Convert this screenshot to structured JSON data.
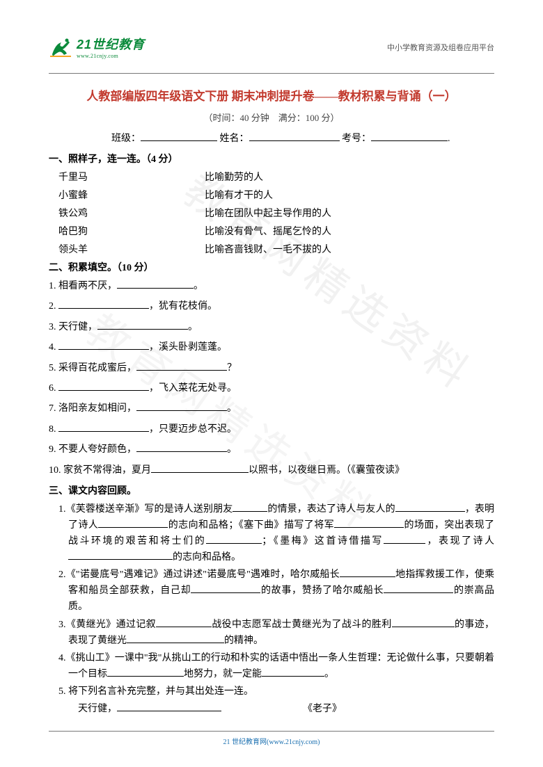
{
  "header": {
    "logo_title": "21世纪教育",
    "logo_sub": "www.21cnjy.com",
    "right_text": "中小学教育资源及组卷应用平台"
  },
  "title": "人教部编版四年级语文下册 期末冲刺提升卷——教材积累与背诵（一）",
  "meta": "（时间：40 分钟　满分：100 分）",
  "info": {
    "class_label": "班级：",
    "name_label": "姓名：",
    "id_label": "考号："
  },
  "section1": {
    "head": "一、照样子，连一连。（4 分）",
    "rows": [
      {
        "l": "千里马",
        "r": "比喻勤劳的人"
      },
      {
        "l": "小蜜蜂",
        "r": "比喻有才干的人"
      },
      {
        "l": "铁公鸡",
        "r": "比喻在团队中起主导作用的人"
      },
      {
        "l": "哈巴狗",
        "r": "比喻没有骨气、摇尾乞怜的人"
      },
      {
        "l": "领头羊",
        "r": "比喻吝啬钱财、一毛不拔的人"
      }
    ]
  },
  "section2": {
    "head": "二、积累填空。（10 分）",
    "items": [
      {
        "n": "1.",
        "pre": "相看两不厌，",
        "post": "。",
        "w": 110
      },
      {
        "n": "2.",
        "pre": "",
        "post": "，犹有花枝俏。",
        "w": 130,
        "lead": true
      },
      {
        "n": "3.",
        "pre": "天行健，",
        "post": "。",
        "w": 130
      },
      {
        "n": "4.",
        "pre": "",
        "post": "，溪头卧剥莲蓬。",
        "w": 130,
        "lead": true
      },
      {
        "n": "5.",
        "pre": "采得百花成蜜后，",
        "post": "？",
        "w": 130
      },
      {
        "n": "6.",
        "pre": "",
        "post": "，飞入菜花无处寻。",
        "w": 130,
        "lead": true
      },
      {
        "n": "7.",
        "pre": "洛阳亲友如相问，",
        "post": "。",
        "w": 130
      },
      {
        "n": "8.",
        "pre": "",
        "post": "，只要迈步总不迟。",
        "w": 130,
        "lead": true
      },
      {
        "n": "9.",
        "pre": "不要人夸好颜色，",
        "post": "。",
        "w": 130
      },
      {
        "n": "10.",
        "pre": "家贫不常得油，夏月",
        "post": "以照书，以夜继日焉。（《囊萤夜读》",
        "w": 140
      }
    ]
  },
  "section3": {
    "head": "三、课文内容回顾。",
    "q1_a": "1.《芙蓉楼送辛渐》写的是诗人送别朋友",
    "q1_b": "的情景，表达了诗人与友人的",
    "q1_c": "，表明了诗人",
    "q1_d": "的志向和品格；《塞下曲》描写了将军",
    "q1_e": "的场面，突出表现了战斗环境的艰苦和将士们的",
    "q1_f": "；《墨梅》这首诗借描写",
    "q1_g": "，表现了诗人",
    "q1_h": "的志向和品格。",
    "q2_a": "2.《\"诺曼底号\"遇难记》通过讲述\"诺曼底号\"遇难时，哈尔威船长",
    "q2_b": "地指挥救援工作，使乘客和船员全部获救，自己却",
    "q2_c": "的故事，赞扬了哈尔威船长",
    "q2_d": "的崇高品质。",
    "q3_a": "3.《黄继光》通过记叙",
    "q3_b": "战役中志愿军战士黄继光为了战斗的胜利",
    "q3_c": "的事迹，表现了黄继光",
    "q3_d": "的精神。",
    "q4_a": "4.《挑山工》一课中\"我\"从挑山工的行动和朴实的话语中悟出一条人生哲理：无论做什么事，只要朝着一个目标",
    "q4_b": "地努力，就一定能",
    "q4_c": "。",
    "q5_a": "5. 将下列名言补充完整，并与其出处连一连。",
    "q5_b": "天行健，",
    "q5_c": "《老子》"
  },
  "footer": "21 世纪教育网(www.21cnjy.com)",
  "watermark": "教育网精选资料",
  "colors": {
    "title": "#c23a2e",
    "logo": "#0a8a3a",
    "footer": "#1a6fb0",
    "text": "#000000"
  }
}
